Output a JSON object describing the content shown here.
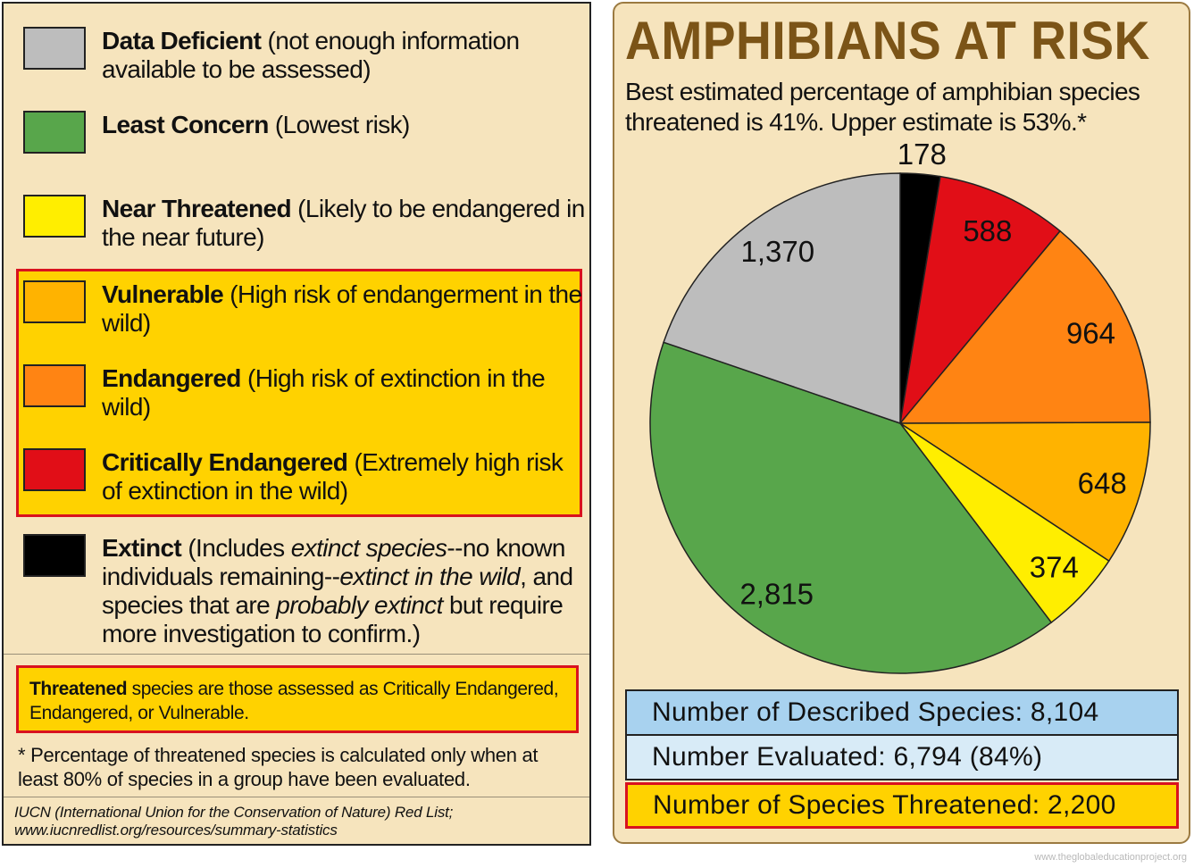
{
  "legend": {
    "items": [
      {
        "key": "data_deficient",
        "term": "Data Deficient",
        "desc": " (not enough information available to be assessed)",
        "color": "#bdbdbd"
      },
      {
        "key": "least_concern",
        "term": "Least Concern",
        "desc": " (Lowest risk)",
        "color": "#58a64b"
      },
      {
        "key": "near_threatened",
        "term": "Near Threatened",
        "desc": " (Likely to be endangered in the near future)",
        "color": "#ffee00"
      },
      {
        "key": "vulnerable",
        "term": "Vulnerable",
        "desc": " (High risk of endangerment in the wild)",
        "color": "#ffb300"
      },
      {
        "key": "endangered",
        "term": "Endangered",
        "desc": " (High risk of extinction in the wild)",
        "color": "#ff8413"
      },
      {
        "key": "critically_endangered",
        "term": "Critically Endangered",
        "desc": " (Extremely high risk of extinction in the wild)",
        "color": "#e10e17"
      },
      {
        "key": "extinct",
        "term": "Extinct",
        "desc_parts": [
          " (Includes ",
          "extinct species",
          "--no known individuals remaining--",
          "extinct in the wild",
          ", and species that are ",
          "probably extinct",
          " but require more investigation to confirm.)"
        ],
        "color": "#000000"
      }
    ],
    "threatened_note": {
      "term": "Threatened",
      "text": " species are those assessed as Critically Endangered, Endangered, or Vulnerable."
    },
    "footnote": "* Percentage of threatened species is calculated only when at least 80% of species in a group have been evaluated.",
    "source": "IUCN (International Union for the Conservation of Nature) Red List; www.iucnredlist.org/resources/summary-statistics"
  },
  "chart_data": {
    "type": "pie",
    "title": "AMPHIBIANS AT RISK",
    "subtitle": "Best estimated percentage of amphibian species threatened is 41%. Upper estimate is 53%.*",
    "slices": [
      {
        "category": "Extinct",
        "value": 178,
        "label": "178",
        "color": "#000000"
      },
      {
        "category": "Critically Endangered",
        "value": 588,
        "label": "588",
        "color": "#e10e17"
      },
      {
        "category": "Endangered",
        "value": 964,
        "label": "964",
        "color": "#ff8413"
      },
      {
        "category": "Vulnerable",
        "value": 648,
        "label": "648",
        "color": "#ffb300"
      },
      {
        "category": "Near Threatened",
        "value": 374,
        "label": "374",
        "color": "#ffee00"
      },
      {
        "category": "Least Concern",
        "value": 2815,
        "label": "2,815",
        "color": "#58a64b"
      },
      {
        "category": "Data Deficient",
        "value": 1370,
        "label": "1,370",
        "color": "#bdbdbd"
      }
    ],
    "start": "12 o'clock",
    "direction": "clockwise"
  },
  "stats": {
    "described": {
      "text": "Number of Described Species: 8,104",
      "color": "#a8d2ef"
    },
    "evaluated": {
      "text": "Number Evaluated: 6,794 (84%)",
      "color": "#d8ebf7"
    },
    "threatened": {
      "text": "Number of Species Threatened: 2,200",
      "color": "#ffd200"
    }
  },
  "credit": "www.theglobaleducationproject.org"
}
